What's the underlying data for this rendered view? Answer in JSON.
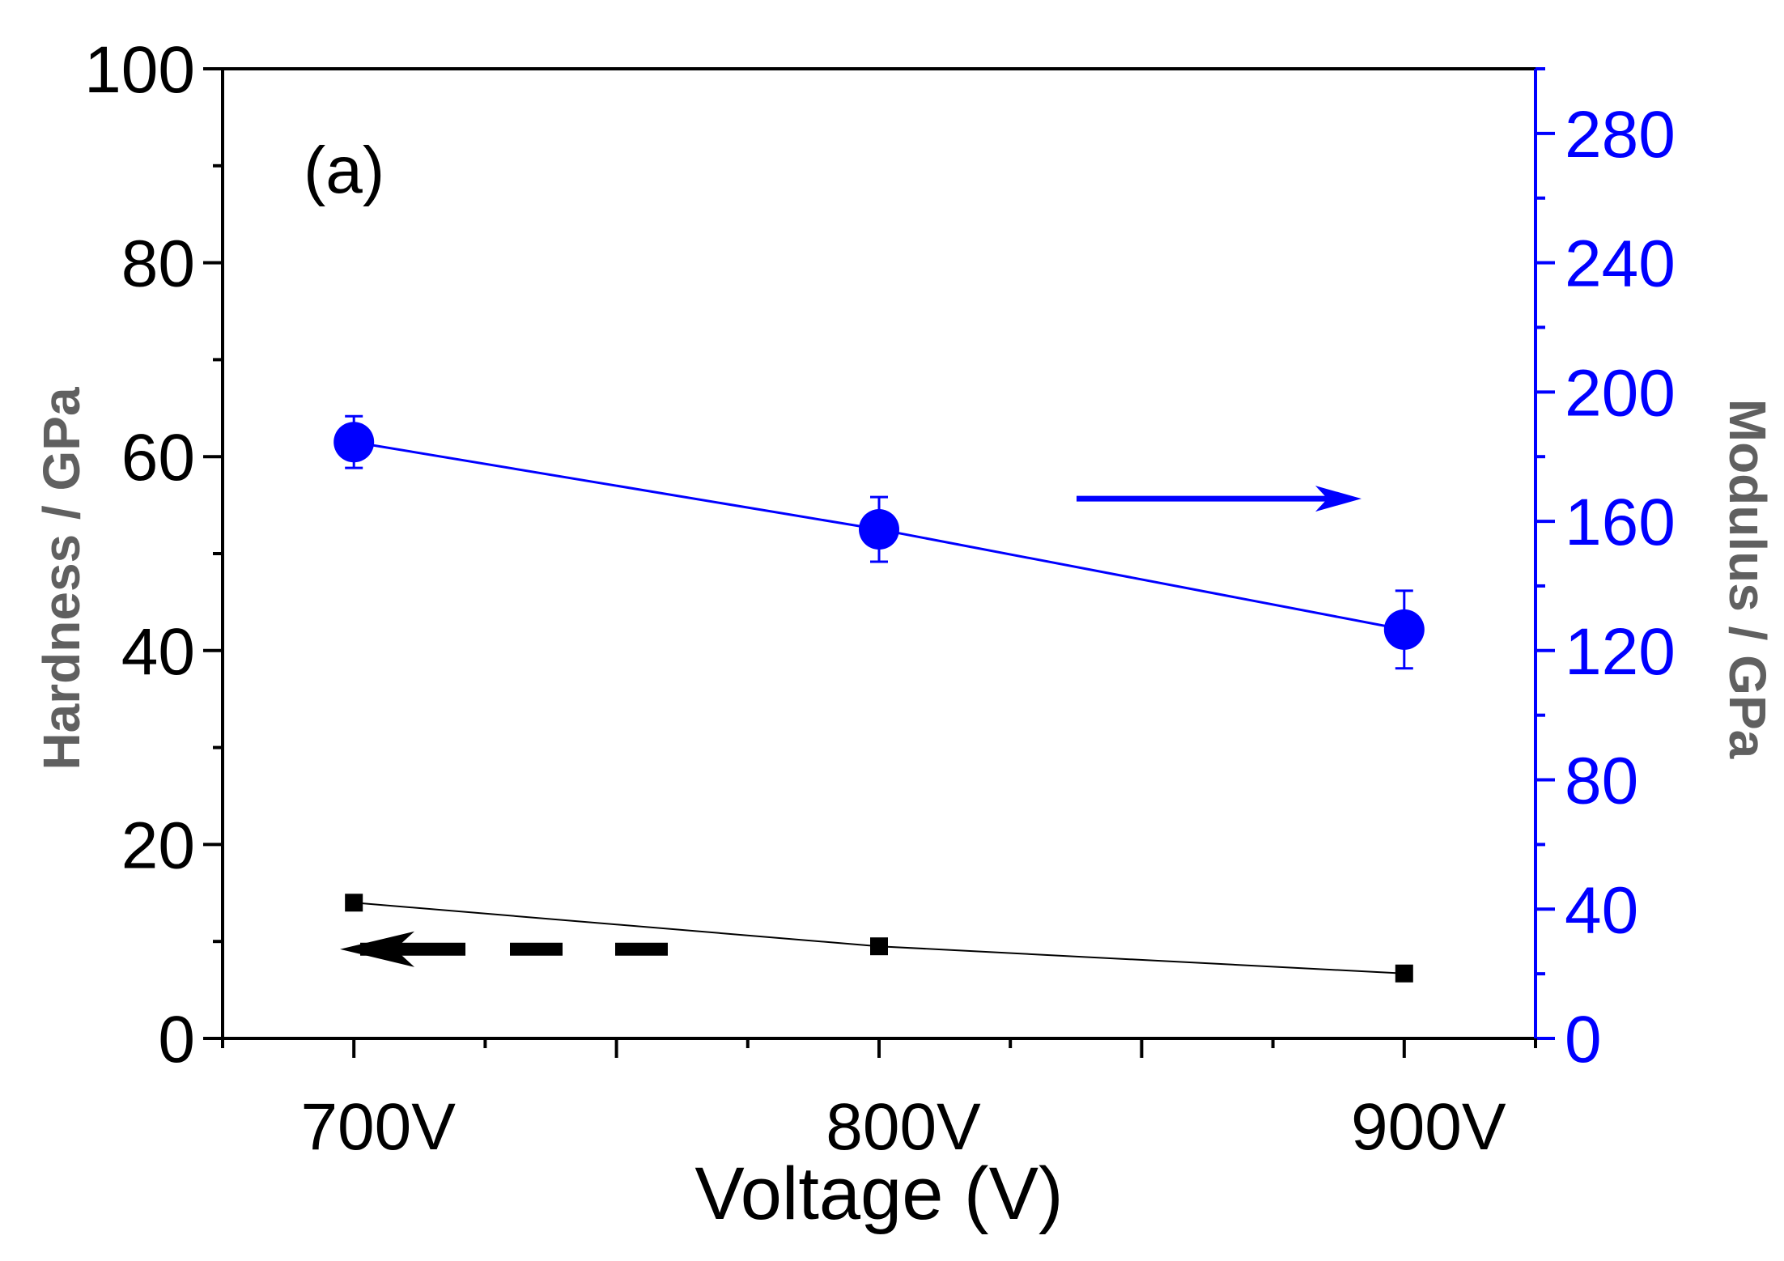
{
  "chart_data": {
    "type": "line",
    "panel_label": "(a)",
    "categories": [
      "700V",
      "800V",
      "900V"
    ],
    "x": [
      700,
      800,
      900
    ],
    "xlabel": "Voltage (V)",
    "xlim": [
      675,
      925
    ],
    "y_left": {
      "label": "Hardness / GPa",
      "range": [
        0,
        100
      ],
      "ticks": [
        0,
        20,
        40,
        60,
        80,
        100
      ],
      "tick_labels": [
        "0",
        "20",
        "40",
        "60",
        "80",
        "100"
      ],
      "color": "#000000",
      "label_color": "#606060"
    },
    "y_right": {
      "label": "Modulus / GPa",
      "range": [
        0,
        300
      ],
      "ticks": [
        0,
        40,
        80,
        120,
        160,
        200,
        240,
        280
      ],
      "tick_labels": [
        "0",
        "40",
        "80",
        "120",
        "160",
        "200",
        "240",
        "280"
      ],
      "color": "#0000ff",
      "label_color": "#606060"
    },
    "series": [
      {
        "name": "Hardness",
        "axis": "left",
        "marker": "square",
        "color": "#000000",
        "values": [
          14,
          9.5,
          6.7
        ],
        "error": [
          0,
          0,
          0
        ],
        "arrow_direction": "left",
        "arrow_style": "dashed"
      },
      {
        "name": "Modulus",
        "axis": "right",
        "marker": "circle",
        "color": "#0000ff",
        "values": [
          184.5,
          157.5,
          126.5
        ],
        "error": [
          8,
          10,
          12
        ],
        "arrow_direction": "right",
        "arrow_style": "solid"
      }
    ]
  }
}
